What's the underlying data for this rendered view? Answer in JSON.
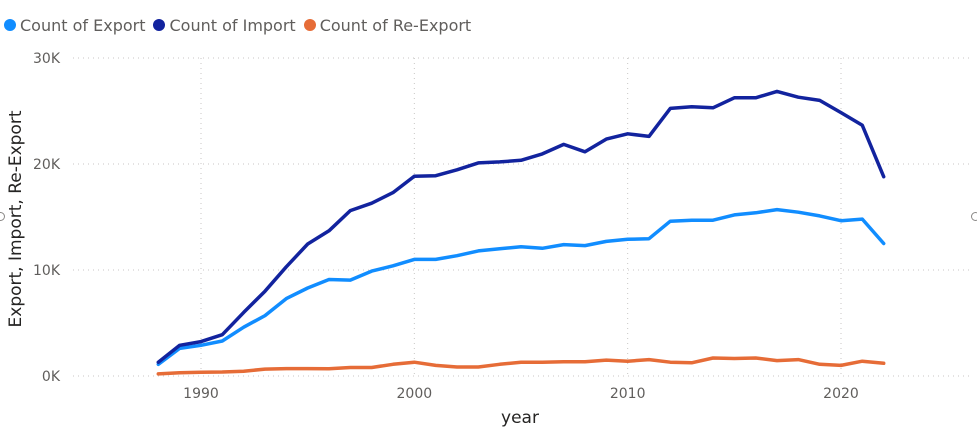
{
  "chart_data": {
    "type": "line",
    "xlabel": "year",
    "ylabel": "Export, Import, Re-Export",
    "xlim": [
      1984,
      2026
    ],
    "ylim": [
      0,
      30000
    ],
    "x_ticks": [
      1990,
      2000,
      2010,
      2020
    ],
    "x_tick_labels": [
      "1990",
      "2000",
      "2010",
      "2020"
    ],
    "y_ticks": [
      0,
      10000,
      20000,
      30000
    ],
    "y_tick_labels": [
      "0K",
      "10K",
      "20K",
      "30K"
    ],
    "grid": true,
    "legend_position": "top-left",
    "x": [
      1988,
      1989,
      1990,
      1991,
      1992,
      1993,
      1994,
      1995,
      1996,
      1997,
      1998,
      1999,
      2000,
      2001,
      2002,
      2003,
      2004,
      2005,
      2006,
      2007,
      2008,
      2009,
      2010,
      2011,
      2012,
      2013,
      2014,
      2015,
      2016,
      2017,
      2018,
      2019,
      2020,
      2021,
      2022
    ],
    "series": [
      {
        "name": "Count of Export",
        "color": "#118dff",
        "values": [
          1100,
          2600,
          2900,
          3300,
          4600,
          5700,
          7300,
          8300,
          9100,
          9050,
          9900,
          10400,
          11000,
          11000,
          11350,
          11800,
          12000,
          12200,
          12050,
          12400,
          12300,
          12700,
          12900,
          12950,
          14600,
          14700,
          14700,
          15200,
          15400,
          15700,
          15450,
          15100,
          14650,
          14800,
          12500
        ]
      },
      {
        "name": "Count of Import",
        "color": "#12239e",
        "values": [
          1300,
          2900,
          3250,
          3900,
          6000,
          8000,
          10300,
          12450,
          13700,
          15600,
          16300,
          17300,
          18850,
          18900,
          19450,
          20100,
          20200,
          20350,
          20950,
          21850,
          21150,
          22350,
          22850,
          22600,
          25250,
          25400,
          25300,
          26250,
          26250,
          26850,
          26300,
          26000,
          24850,
          23650,
          18800
        ]
      },
      {
        "name": "Count of Re-Export",
        "color": "#e66c37",
        "values": [
          200,
          300,
          350,
          380,
          450,
          650,
          700,
          700,
          680,
          800,
          800,
          1100,
          1300,
          1000,
          850,
          850,
          1100,
          1300,
          1300,
          1350,
          1350,
          1500,
          1400,
          1550,
          1300,
          1250,
          1700,
          1650,
          1700,
          1450,
          1550,
          1100,
          1000,
          1400,
          1200
        ]
      }
    ]
  }
}
